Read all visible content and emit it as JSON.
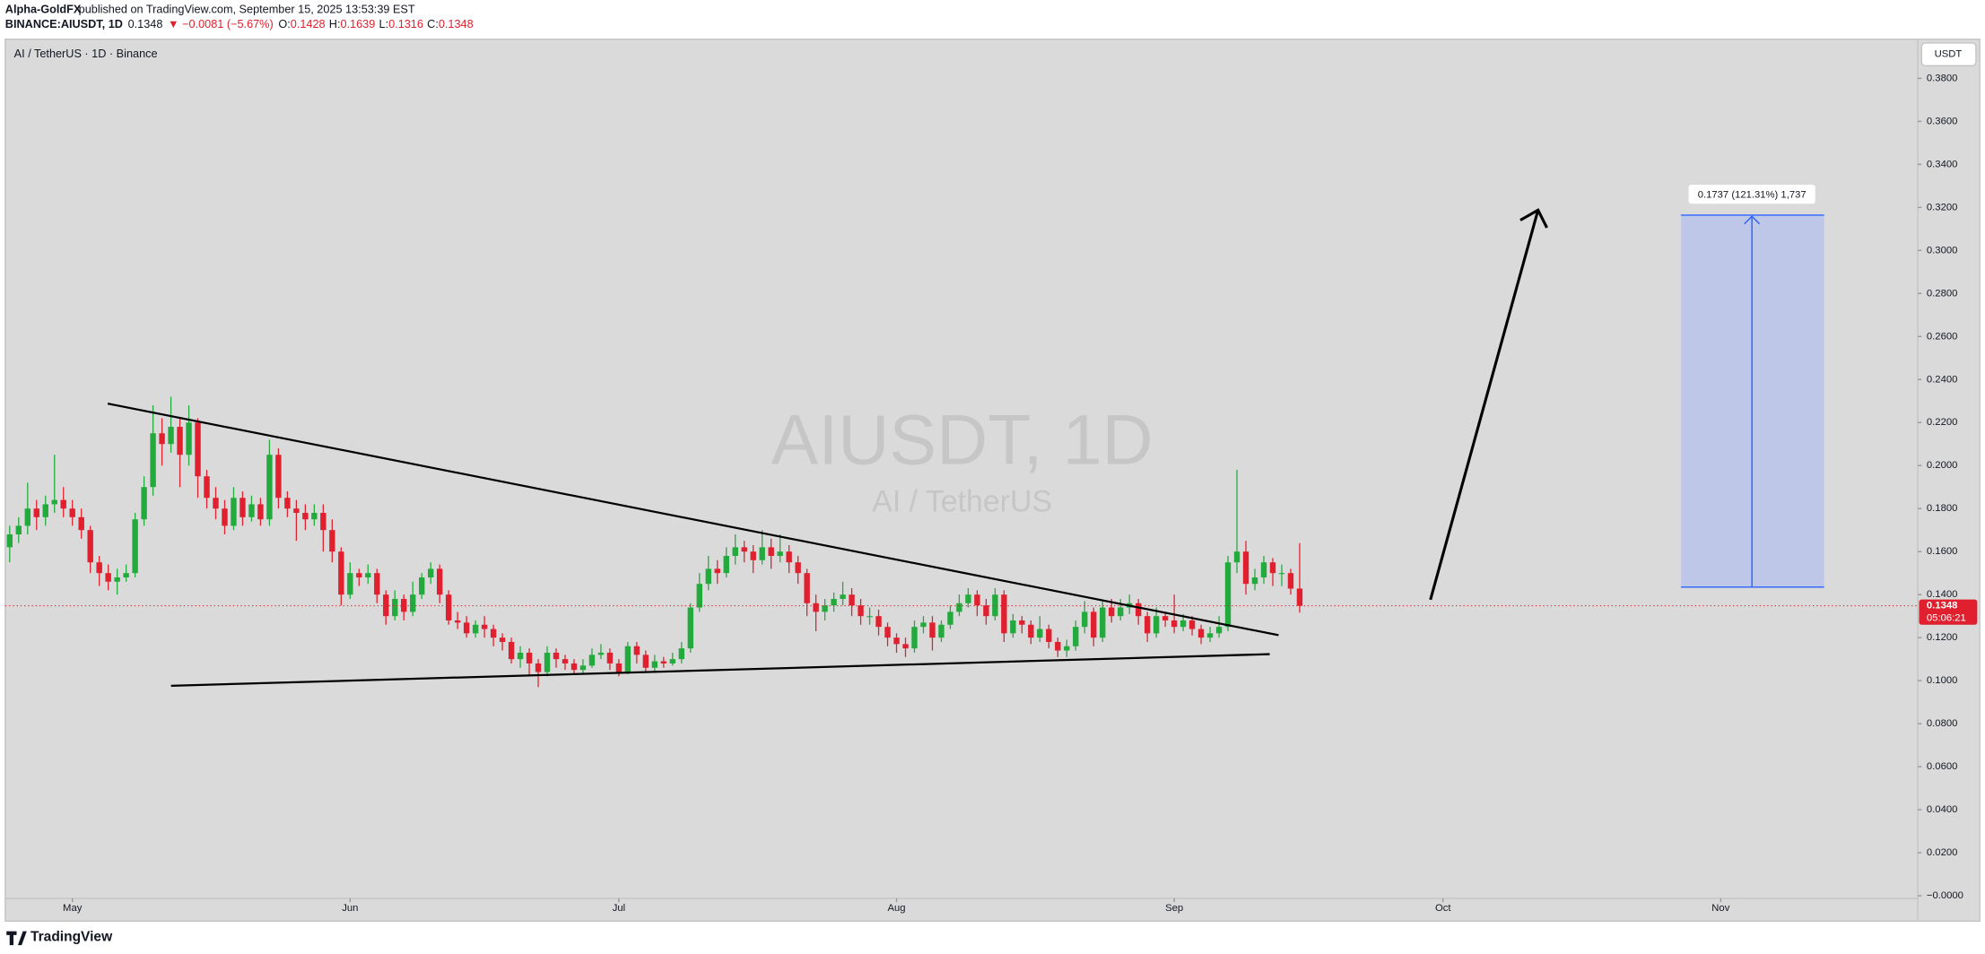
{
  "header": {
    "author": "Alpha-GoldFX",
    "published": "published on TradingView.com, September 15, 2025 13:53:39 EST",
    "symbol": "BINANCE:AIUSDT, 1D",
    "last": "0.1348",
    "change": "▼ −0.0081 (−5.67%)",
    "o_label": "O:",
    "o": "0.1428",
    "h_label": "H:",
    "h": "0.1639",
    "l_label": "L:",
    "l": "0.1316",
    "c_label": "C:",
    "c": "0.1348"
  },
  "chart_data": {
    "type": "candlestick",
    "legend_text": "AI / TetherUS · 1D · Binance",
    "watermark": "AIUSDT, 1D",
    "watermark_sub": "AI / TetherUS",
    "currency": "USDT",
    "countdown": "05:06:21",
    "target_label": "0.1737 (121.31%) 1,737",
    "up_color": "#22ab3c",
    "down_color": "#e0202e",
    "grid": false,
    "xlim": [
      -0.5,
      213
    ],
    "ylim": [
      -0.0012,
      0.3982
    ],
    "xticks": [
      {
        "value": 7,
        "label": "May"
      },
      {
        "value": 38,
        "label": "Jun"
      },
      {
        "value": 68,
        "label": "Jul"
      },
      {
        "value": 99,
        "label": "Aug"
      },
      {
        "value": 130,
        "label": "Sep"
      },
      {
        "value": 160,
        "label": "Oct"
      },
      {
        "value": 191,
        "label": "Nov"
      }
    ],
    "yticks": [
      {
        "value": 0,
        "label": "−0.0000"
      },
      {
        "value": 0.02,
        "label": "0.0200"
      },
      {
        "value": 0.04,
        "label": "0.0400"
      },
      {
        "value": 0.06,
        "label": "0.0600"
      },
      {
        "value": 0.08,
        "label": "0.0800"
      },
      {
        "value": 0.1,
        "label": "0.1000"
      },
      {
        "value": 0.12,
        "label": "0.1200"
      },
      {
        "value": 0.14,
        "label": "0.1400"
      },
      {
        "value": 0.16,
        "label": "0.1600"
      },
      {
        "value": 0.18,
        "label": "0.1800"
      },
      {
        "value": 0.2,
        "label": "0.2000"
      },
      {
        "value": 0.22,
        "label": "0.2200"
      },
      {
        "value": 0.24,
        "label": "0.2400"
      },
      {
        "value": 0.26,
        "label": "0.2600"
      },
      {
        "value": 0.28,
        "label": "0.2800"
      },
      {
        "value": 0.3,
        "label": "0.3000"
      },
      {
        "value": 0.32,
        "label": "0.3200"
      },
      {
        "value": 0.34,
        "label": "0.3400"
      },
      {
        "value": 0.36,
        "label": "0.3600"
      },
      {
        "value": 0.38,
        "label": "0.3800"
      }
    ],
    "open": [
      0.162,
      0.168,
      0.172,
      0.18,
      0.176,
      0.182,
      0.184,
      0.18,
      0.176,
      0.17,
      0.155,
      0.15,
      0.146,
      0.148,
      0.15,
      0.175,
      0.19,
      0.215,
      0.21,
      0.218,
      0.205,
      0.22,
      0.195,
      0.185,
      0.18,
      0.172,
      0.185,
      0.176,
      0.182,
      0.175,
      0.205,
      0.185,
      0.18,
      0.178,
      0.175,
      0.178,
      0.17,
      0.16,
      0.14,
      0.15,
      0.148,
      0.15,
      0.14,
      0.13,
      0.138,
      0.132,
      0.14,
      0.148,
      0.152,
      0.14,
      0.128,
      0.127,
      0.122,
      0.126,
      0.124,
      0.12,
      0.118,
      0.11,
      0.113,
      0.108,
      0.104,
      0.113,
      0.11,
      0.108,
      0.105,
      0.107,
      0.112,
      0.113,
      0.108,
      0.104,
      0.116,
      0.112,
      0.106,
      0.109,
      0.108,
      0.11,
      0.115,
      0.134,
      0.145,
      0.152,
      0.15,
      0.158,
      0.162,
      0.16,
      0.156,
      0.162,
      0.158,
      0.16,
      0.155,
      0.15,
      0.136,
      0.132,
      0.135,
      0.138,
      0.14,
      0.135,
      0.13,
      0.13,
      0.125,
      0.12,
      0.117,
      0.115,
      0.125,
      0.127,
      0.12,
      0.126,
      0.132,
      0.136,
      0.14,
      0.135,
      0.13,
      0.14,
      0.122,
      0.128,
      0.126,
      0.12,
      0.124,
      0.118,
      0.114,
      0.116,
      0.125,
      0.132,
      0.12,
      0.134,
      0.13,
      0.134,
      0.136,
      0.13,
      0.122,
      0.13,
      0.128,
      0.125,
      0.128,
      0.124,
      0.12,
      0.122,
      0.125,
      0.155,
      0.16,
      0.145,
      0.148,
      0.155,
      0.15,
      0.15,
      0.1428
    ],
    "high": [
      0.172,
      0.176,
      0.192,
      0.184,
      0.186,
      0.205,
      0.19,
      0.184,
      0.18,
      0.172,
      0.158,
      0.154,
      0.152,
      0.154,
      0.178,
      0.195,
      0.228,
      0.222,
      0.232,
      0.222,
      0.228,
      0.222,
      0.198,
      0.19,
      0.184,
      0.19,
      0.188,
      0.186,
      0.185,
      0.212,
      0.208,
      0.188,
      0.184,
      0.182,
      0.182,
      0.182,
      0.175,
      0.162,
      0.155,
      0.152,
      0.154,
      0.152,
      0.142,
      0.142,
      0.14,
      0.146,
      0.15,
      0.155,
      0.154,
      0.142,
      0.132,
      0.13,
      0.128,
      0.13,
      0.126,
      0.122,
      0.12,
      0.116,
      0.115,
      0.11,
      0.116,
      0.115,
      0.112,
      0.11,
      0.11,
      0.115,
      0.117,
      0.115,
      0.11,
      0.118,
      0.118,
      0.114,
      0.112,
      0.111,
      0.113,
      0.118,
      0.136,
      0.15,
      0.158,
      0.156,
      0.162,
      0.168,
      0.165,
      0.163,
      0.17,
      0.166,
      0.168,
      0.163,
      0.158,
      0.152,
      0.14,
      0.138,
      0.141,
      0.146,
      0.143,
      0.138,
      0.134,
      0.133,
      0.127,
      0.122,
      0.12,
      0.128,
      0.13,
      0.13,
      0.128,
      0.135,
      0.14,
      0.143,
      0.142,
      0.138,
      0.143,
      0.142,
      0.131,
      0.13,
      0.128,
      0.13,
      0.126,
      0.12,
      0.119,
      0.128,
      0.137,
      0.134,
      0.137,
      0.138,
      0.138,
      0.14,
      0.138,
      0.132,
      0.134,
      0.132,
      0.14,
      0.131,
      0.13,
      0.126,
      0.125,
      0.13,
      0.158,
      0.198,
      0.165,
      0.152,
      0.158,
      0.157,
      0.154,
      0.152,
      0.1639
    ],
    "low": [
      0.155,
      0.164,
      0.168,
      0.17,
      0.172,
      0.178,
      0.176,
      0.172,
      0.166,
      0.15,
      0.144,
      0.142,
      0.14,
      0.146,
      0.148,
      0.172,
      0.186,
      0.2,
      0.206,
      0.19,
      0.2,
      0.185,
      0.18,
      0.175,
      0.168,
      0.17,
      0.172,
      0.174,
      0.172,
      0.172,
      0.18,
      0.176,
      0.165,
      0.17,
      0.172,
      0.16,
      0.155,
      0.135,
      0.138,
      0.144,
      0.145,
      0.136,
      0.126,
      0.128,
      0.128,
      0.13,
      0.138,
      0.145,
      0.136,
      0.126,
      0.124,
      0.12,
      0.12,
      0.12,
      0.116,
      0.114,
      0.108,
      0.106,
      0.102,
      0.097,
      0.102,
      0.106,
      0.105,
      0.103,
      0.103,
      0.106,
      0.11,
      0.105,
      0.102,
      0.103,
      0.108,
      0.104,
      0.104,
      0.106,
      0.107,
      0.108,
      0.113,
      0.132,
      0.142,
      0.145,
      0.148,
      0.154,
      0.155,
      0.15,
      0.154,
      0.152,
      0.155,
      0.15,
      0.145,
      0.13,
      0.123,
      0.128,
      0.132,
      0.135,
      0.13,
      0.126,
      0.126,
      0.121,
      0.116,
      0.113,
      0.111,
      0.113,
      0.122,
      0.114,
      0.118,
      0.124,
      0.13,
      0.134,
      0.13,
      0.126,
      0.128,
      0.118,
      0.12,
      0.122,
      0.117,
      0.118,
      0.115,
      0.111,
      0.111,
      0.114,
      0.122,
      0.116,
      0.118,
      0.127,
      0.128,
      0.131,
      0.126,
      0.118,
      0.12,
      0.125,
      0.122,
      0.123,
      0.121,
      0.117,
      0.118,
      0.12,
      0.123,
      0.15,
      0.14,
      0.142,
      0.145,
      0.144,
      0.144,
      0.14,
      0.1316
    ],
    "close": [
      0.168,
      0.172,
      0.18,
      0.176,
      0.182,
      0.184,
      0.18,
      0.176,
      0.17,
      0.155,
      0.15,
      0.146,
      0.148,
      0.15,
      0.175,
      0.19,
      0.215,
      0.21,
      0.218,
      0.205,
      0.22,
      0.195,
      0.185,
      0.18,
      0.172,
      0.185,
      0.176,
      0.182,
      0.175,
      0.205,
      0.185,
      0.18,
      0.178,
      0.175,
      0.178,
      0.17,
      0.16,
      0.14,
      0.15,
      0.148,
      0.15,
      0.14,
      0.13,
      0.138,
      0.132,
      0.14,
      0.148,
      0.152,
      0.14,
      0.128,
      0.127,
      0.122,
      0.126,
      0.124,
      0.12,
      0.118,
      0.11,
      0.113,
      0.108,
      0.104,
      0.113,
      0.11,
      0.108,
      0.105,
      0.107,
      0.112,
      0.113,
      0.108,
      0.104,
      0.116,
      0.112,
      0.106,
      0.109,
      0.108,
      0.11,
      0.115,
      0.134,
      0.145,
      0.152,
      0.15,
      0.158,
      0.162,
      0.16,
      0.156,
      0.162,
      0.158,
      0.16,
      0.155,
      0.15,
      0.136,
      0.132,
      0.135,
      0.138,
      0.14,
      0.135,
      0.13,
      0.13,
      0.125,
      0.12,
      0.117,
      0.115,
      0.125,
      0.127,
      0.12,
      0.126,
      0.132,
      0.136,
      0.14,
      0.135,
      0.13,
      0.14,
      0.122,
      0.128,
      0.126,
      0.12,
      0.124,
      0.118,
      0.114,
      0.116,
      0.125,
      0.132,
      0.12,
      0.134,
      0.13,
      0.134,
      0.136,
      0.13,
      0.122,
      0.13,
      0.128,
      0.125,
      0.128,
      0.124,
      0.12,
      0.122,
      0.125,
      0.155,
      0.16,
      0.145,
      0.148,
      0.155,
      0.15,
      0.15,
      0.1428,
      0.1348
    ]
  },
  "footer": {
    "brand": "TradingView"
  }
}
